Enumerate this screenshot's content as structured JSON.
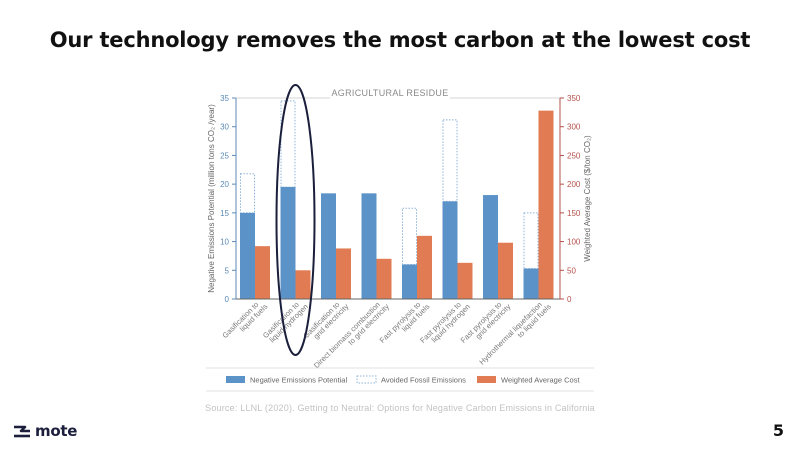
{
  "slide": {
    "title": "Our technology removes the most carbon at the lowest cost",
    "source": "Source: LLNL (2020). Getting to Neutral: Options for Negative Carbon Emissions in California",
    "logo_text": "mote",
    "logo_icon": "mote-wave-icon",
    "page_number": "5"
  },
  "colors": {
    "blue": "#5b93c8",
    "orange": "#e07b53",
    "dotted": "#8fb4d8",
    "left_axis": "#5b8ab8",
    "right_axis": "#b5504a",
    "highlight": "#1b1f3b"
  },
  "chart_data": {
    "type": "bar",
    "title": "AGRICULTURAL RESIDUE",
    "categories": [
      "Gasification to liquid fuels",
      "Gasification to liquid hydrogen",
      "Gasification to grid electricity",
      "Direct biomass combustion to grid electricity",
      "Fast pyrolysis to liquid fuels",
      "Fast pyrolysis to liquid hydrogen",
      "Fast pyrolysis to grid electricity",
      "Hydrothermal liquefaction to liquid fuels"
    ],
    "category_lines": [
      [
        "Gasification to",
        "liquid fuels"
      ],
      [
        "Gasification to",
        "liquid hydrogen"
      ],
      [
        "Gasification to",
        "grid electricity"
      ],
      [
        "Direct biomass combustion",
        "to grid electricity"
      ],
      [
        "Fast pyrolysis to",
        "liquid fuels"
      ],
      [
        "Fast pyrolysis to",
        "liquid hydrogen"
      ],
      [
        "Fast pyrolysis to",
        "grid electricity"
      ],
      [
        "Hydrothermal liquefaction",
        "to liquid fuels"
      ]
    ],
    "series": [
      {
        "name": "Negative Emissions Potential",
        "axis": "left",
        "style": "solid-blue",
        "values": [
          15,
          19.5,
          18.4,
          18.4,
          6,
          17,
          18.1,
          5.3
        ]
      },
      {
        "name": "Avoided Fossil Emissions",
        "axis": "left",
        "style": "dotted-outline",
        "values_total": [
          21.8,
          34.5,
          null,
          null,
          15.8,
          31.2,
          null,
          15
        ]
      },
      {
        "name": "Weighted Average Cost",
        "axis": "right",
        "style": "solid-orange",
        "values": [
          92,
          50,
          88,
          70,
          110,
          63,
          98,
          328
        ]
      }
    ],
    "ylabel_left": "Negative Emissions Potential (million tons CO₂ /year)",
    "ylabel_right": "Weighted Average Cost ($/ton CO₂)",
    "ylim_left": [
      0,
      35
    ],
    "yticks_left": [
      0,
      5,
      10,
      15,
      20,
      25,
      30,
      35
    ],
    "ylim_right": [
      0,
      350
    ],
    "yticks_right": [
      0,
      50,
      100,
      150,
      200,
      250,
      300,
      350
    ],
    "legend": [
      "Negative Emissions Potential",
      "Avoided Fossil Emissions",
      "Weighted Average Cost"
    ],
    "legend_position": "bottom",
    "highlighted_category": "Gasification to liquid hydrogen",
    "grid": false
  }
}
